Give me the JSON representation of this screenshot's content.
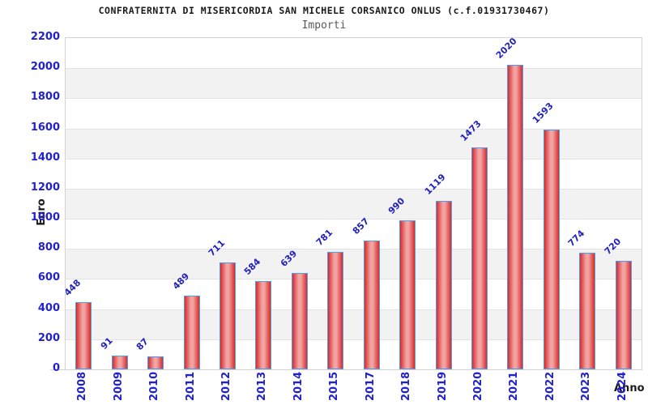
{
  "title": "CONFRATERNITA DI MISERICORDIA SAN MICHELE CORSANICO ONLUS (c.f.01931730467)",
  "subtitle": "Importi",
  "chart_data": {
    "type": "bar",
    "title": "CONFRATERNITA DI MISERICORDIA SAN MICHELE CORSANICO ONLUS (c.f.01931730467)",
    "subtitle": "Importi",
    "xlabel": "Anno",
    "ylabel": "Euro",
    "categories": [
      "2008",
      "2009",
      "2010",
      "2011",
      "2012",
      "2013",
      "2014",
      "2015",
      "2017",
      "2018",
      "2019",
      "2020",
      "2021",
      "2022",
      "2023",
      "2024"
    ],
    "values": [
      448,
      91,
      87,
      489,
      711,
      584,
      639,
      781,
      857,
      990,
      1119,
      1473,
      2020,
      1593,
      774,
      720
    ],
    "ylim": [
      0,
      2200
    ],
    "ytick_step": 200,
    "grid": true,
    "legend": false,
    "colors": {
      "axis_text": "#2222cc",
      "value_text": "#2222bb",
      "title_text": "#1a1a1a",
      "subtitle_text": "#595959",
      "bar_edge": "#d92a2a",
      "bar_center": "#f2a3a3",
      "bar_border": "#49a0f0",
      "band": "#f2f2f2",
      "gridline": "#e3e3e3",
      "plot_border": "#d4d4d4"
    }
  }
}
